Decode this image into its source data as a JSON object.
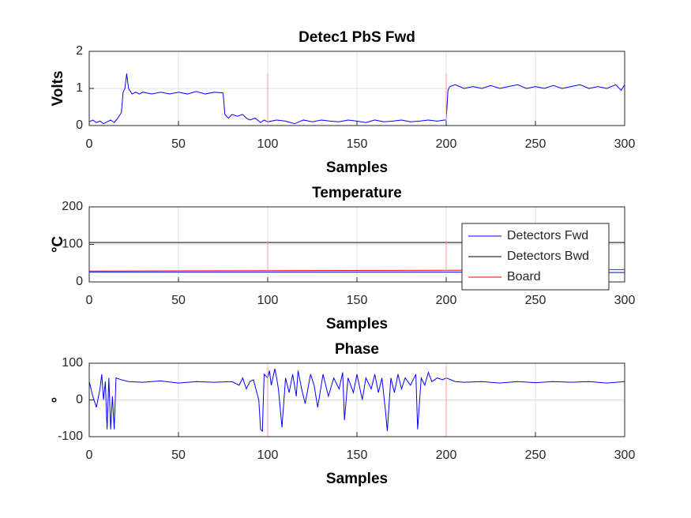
{
  "chart_data": [
    {
      "type": "line",
      "title": "Detec1 PbS Fwd",
      "xlabel": "Samples",
      "ylabel": "Volts",
      "xlim": [
        0,
        300
      ],
      "xticks": [
        0,
        50,
        100,
        150,
        200,
        250,
        300
      ],
      "ylim": [
        0,
        2
      ],
      "yticks": [
        0,
        1,
        2
      ],
      "grid": true,
      "series": [
        {
          "color": "#0000ff",
          "x": [
            0,
            2,
            4,
            6,
            8,
            10,
            12,
            14,
            16,
            18,
            19,
            20,
            21,
            22,
            24,
            26,
            28,
            30,
            35,
            40,
            45,
            50,
            55,
            60,
            65,
            70,
            75,
            76,
            78,
            80,
            83,
            86,
            88,
            90,
            93,
            96,
            98,
            100,
            105,
            110,
            115,
            120,
            125,
            130,
            135,
            140,
            145,
            150,
            155,
            160,
            165,
            170,
            175,
            180,
            185,
            190,
            195,
            199,
            200,
            201,
            202,
            205,
            210,
            215,
            220,
            225,
            230,
            235,
            240,
            245,
            250,
            255,
            260,
            265,
            270,
            275,
            280,
            285,
            290,
            295,
            298,
            300
          ],
          "values": [
            0.1,
            0.15,
            0.08,
            0.12,
            0.05,
            0.1,
            0.15,
            0.08,
            0.2,
            0.35,
            0.9,
            1.0,
            1.4,
            1.0,
            0.85,
            0.9,
            0.85,
            0.9,
            0.85,
            0.9,
            0.85,
            0.9,
            0.85,
            0.92,
            0.85,
            0.9,
            0.88,
            0.3,
            0.2,
            0.3,
            0.25,
            0.3,
            0.2,
            0.15,
            0.2,
            0.08,
            0.15,
            0.1,
            0.15,
            0.12,
            0.05,
            0.15,
            0.1,
            0.15,
            0.12,
            0.1,
            0.15,
            0.12,
            0.08,
            0.15,
            0.1,
            0.12,
            0.15,
            0.1,
            0.12,
            0.15,
            0.12,
            0.15,
            0.15,
            0.95,
            1.05,
            1.1,
            1.0,
            1.05,
            1.0,
            1.08,
            1.0,
            1.05,
            1.1,
            1.0,
            1.05,
            1.0,
            1.08,
            1.0,
            1.05,
            1.1,
            1.0,
            1.05,
            1.0,
            1.1,
            0.95,
            1.1
          ]
        },
        {
          "color": "#ff9999",
          "x": [
            100,
            100,
            100,
            200,
            200,
            200,
            300,
            300
          ],
          "values": [
            0,
            1.4,
            null,
            0.15,
            1.4,
            null,
            0,
            1.4
          ]
        }
      ]
    },
    {
      "type": "line",
      "title": "Temperature",
      "xlabel": "Samples",
      "ylabel": "°C",
      "xlim": [
        0,
        300
      ],
      "xticks": [
        0,
        50,
        100,
        150,
        200,
        250,
        300
      ],
      "ylim": [
        0,
        200
      ],
      "yticks": [
        0,
        100,
        200
      ],
      "grid": true,
      "legend": "northeast",
      "series": [
        {
          "name": "Detectors Fwd",
          "color": "#0000ff",
          "x": [
            0,
            100,
            200,
            300
          ],
          "values": [
            26,
            26,
            26,
            25
          ]
        },
        {
          "name": "Detectors Bwd",
          "color": "#000000",
          "x": [
            0,
            100,
            200,
            300
          ],
          "values": [
            105,
            105,
            105,
            105
          ]
        },
        {
          "name": "Board",
          "color": "#ff0000",
          "x": [
            0,
            100,
            200,
            300
          ],
          "values": [
            29,
            30,
            31,
            33
          ]
        },
        {
          "color": "#ff9999",
          "x": [
            100,
            100,
            100,
            200,
            200,
            200,
            300,
            300
          ],
          "values": [
            30,
            110,
            null,
            30,
            110,
            null,
            30,
            110
          ]
        }
      ]
    },
    {
      "type": "line",
      "title": "Phase",
      "xlabel": "Samples",
      "ylabel": "°",
      "xlim": [
        0,
        300
      ],
      "xticks": [
        0,
        50,
        100,
        150,
        200,
        250,
        300
      ],
      "ylim": [
        -100,
        100
      ],
      "yticks": [
        -100,
        0,
        100
      ],
      "grid": true,
      "series": [
        {
          "color": "#0000ff",
          "x": [
            0,
            2,
            4,
            6,
            7,
            8,
            9,
            10,
            11,
            12,
            13,
            14,
            15,
            18,
            22,
            30,
            40,
            50,
            60,
            70,
            80,
            84,
            86,
            88,
            90,
            92,
            95,
            96,
            97,
            98,
            100,
            101,
            102,
            104,
            105,
            106,
            108,
            110,
            112,
            114,
            116,
            117,
            119,
            121,
            124,
            126,
            128,
            131,
            134,
            137,
            140,
            142,
            143,
            145,
            148,
            150,
            153,
            155,
            158,
            160,
            162,
            164,
            166,
            167,
            169,
            171,
            173,
            175,
            177,
            180,
            183,
            184,
            186,
            188,
            190,
            192,
            195,
            198,
            200,
            205,
            210,
            220,
            230,
            240,
            250,
            260,
            270,
            280,
            290,
            300
          ],
          "values": [
            50,
            10,
            -20,
            30,
            70,
            0,
            50,
            -80,
            60,
            -80,
            10,
            -80,
            60,
            55,
            50,
            48,
            52,
            46,
            50,
            48,
            50,
            40,
            60,
            30,
            50,
            55,
            0,
            -80,
            -85,
            70,
            60,
            80,
            40,
            85,
            60,
            30,
            -75,
            60,
            20,
            70,
            10,
            80,
            30,
            -10,
            70,
            40,
            -20,
            70,
            10,
            60,
            30,
            75,
            -55,
            60,
            20,
            70,
            0,
            60,
            30,
            70,
            20,
            60,
            -30,
            -85,
            60,
            20,
            70,
            30,
            60,
            40,
            70,
            -80,
            60,
            40,
            75,
            50,
            60,
            55,
            60,
            50,
            48,
            50,
            46,
            50,
            47,
            50,
            48,
            50,
            46,
            50
          ]
        },
        {
          "color": "#ff9999",
          "x": [
            100,
            100,
            100,
            200,
            200,
            200,
            300,
            300
          ],
          "values": [
            -100,
            90,
            null,
            -100,
            90,
            null,
            -100,
            90
          ]
        }
      ]
    }
  ]
}
